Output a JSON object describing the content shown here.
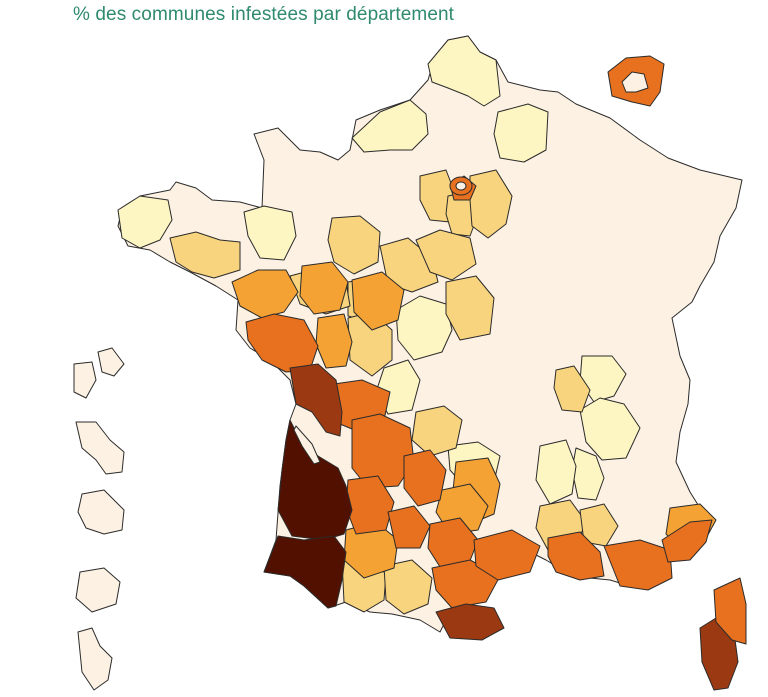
{
  "title": "% des communes infestées par département",
  "scale_colors": {
    "none": "#fcf1e2",
    "very_low": "#fdf5c2",
    "low": "#f8d47f",
    "medium": "#f5a235",
    "high": "#e8711f",
    "very_high": "#9b3a12",
    "max": "#521000"
  },
  "regions": {
    "mainland": "France métropolitaine",
    "corsica": "Corse",
    "overseas": [
      "Guadeloupe",
      "Martinique",
      "Guyane",
      "La Réunion",
      "Mayotte"
    ]
  }
}
